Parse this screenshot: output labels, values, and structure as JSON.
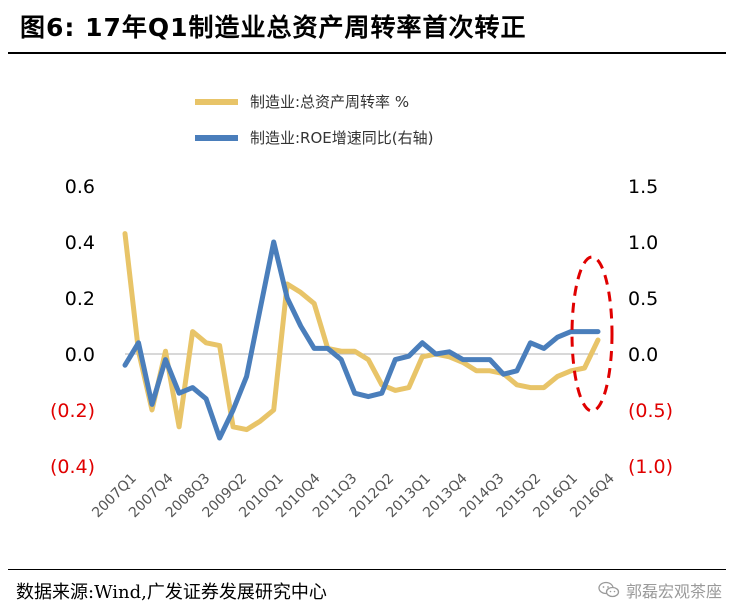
{
  "header": {
    "title": "图6:  17年Q1制造业总资产周转率首次转正"
  },
  "footer": {
    "source": "数据来源:Wind,广发证券发展研究中心",
    "watermark": "郭磊宏观茶座"
  },
  "chart_data": {
    "type": "line",
    "title": "图6:  17年Q1制造业总资产周转率首次转正",
    "x_tick_labels": [
      "2007Q1",
      "2007Q4",
      "2008Q3",
      "2009Q2",
      "2010Q1",
      "2010Q4",
      "2011Q3",
      "2012Q2",
      "2013Q1",
      "2013Q4",
      "2014Q3",
      "2015Q2",
      "2016Q1",
      "2016Q4"
    ],
    "left_axis": {
      "ticks": [
        "0.6",
        "0.4",
        "0.2",
        "0.0",
        "(0.2)",
        "(0.4)"
      ],
      "ylim": [
        -0.4,
        0.6
      ]
    },
    "right_axis": {
      "ticks": [
        "1.5",
        "1.0",
        "0.5",
        "0.0",
        "(0.5)",
        "(1.0)"
      ],
      "ylim": [
        -1.0,
        1.5
      ]
    },
    "negative_tick_color": "#e00000",
    "series": [
      {
        "name": "制造业:总资产周转率 %",
        "color": "#e8c468",
        "axis": "left",
        "values": [
          0.43,
          0.01,
          -0.2,
          0.01,
          -0.26,
          0.08,
          0.04,
          0.03,
          -0.26,
          -0.27,
          -0.24,
          -0.2,
          0.25,
          0.22,
          0.18,
          0.02,
          0.01,
          0.01,
          -0.02,
          -0.11,
          -0.13,
          -0.12,
          -0.01,
          0.0,
          -0.01,
          -0.03,
          -0.06,
          -0.06,
          -0.07,
          -0.11,
          -0.12,
          -0.12,
          -0.08,
          -0.06,
          -0.05,
          0.05
        ]
      },
      {
        "name": "制造业:ROE增速同比(右轴)",
        "color": "#4a7ebb",
        "axis": "right",
        "values": [
          -0.1,
          0.1,
          -0.45,
          -0.05,
          -0.35,
          -0.3,
          -0.4,
          -0.75,
          -0.5,
          -0.2,
          0.4,
          1.0,
          0.5,
          0.25,
          0.05,
          0.05,
          -0.05,
          -0.35,
          -0.38,
          -0.35,
          -0.05,
          -0.02,
          0.1,
          0.0,
          0.02,
          -0.05,
          -0.05,
          -0.05,
          -0.18,
          -0.15,
          0.1,
          0.05,
          0.15,
          0.2,
          0.2,
          0.2
        ]
      }
    ],
    "annotation": {
      "type": "dashed-ellipse",
      "color": "#e00000",
      "target": "2016Q4"
    }
  }
}
